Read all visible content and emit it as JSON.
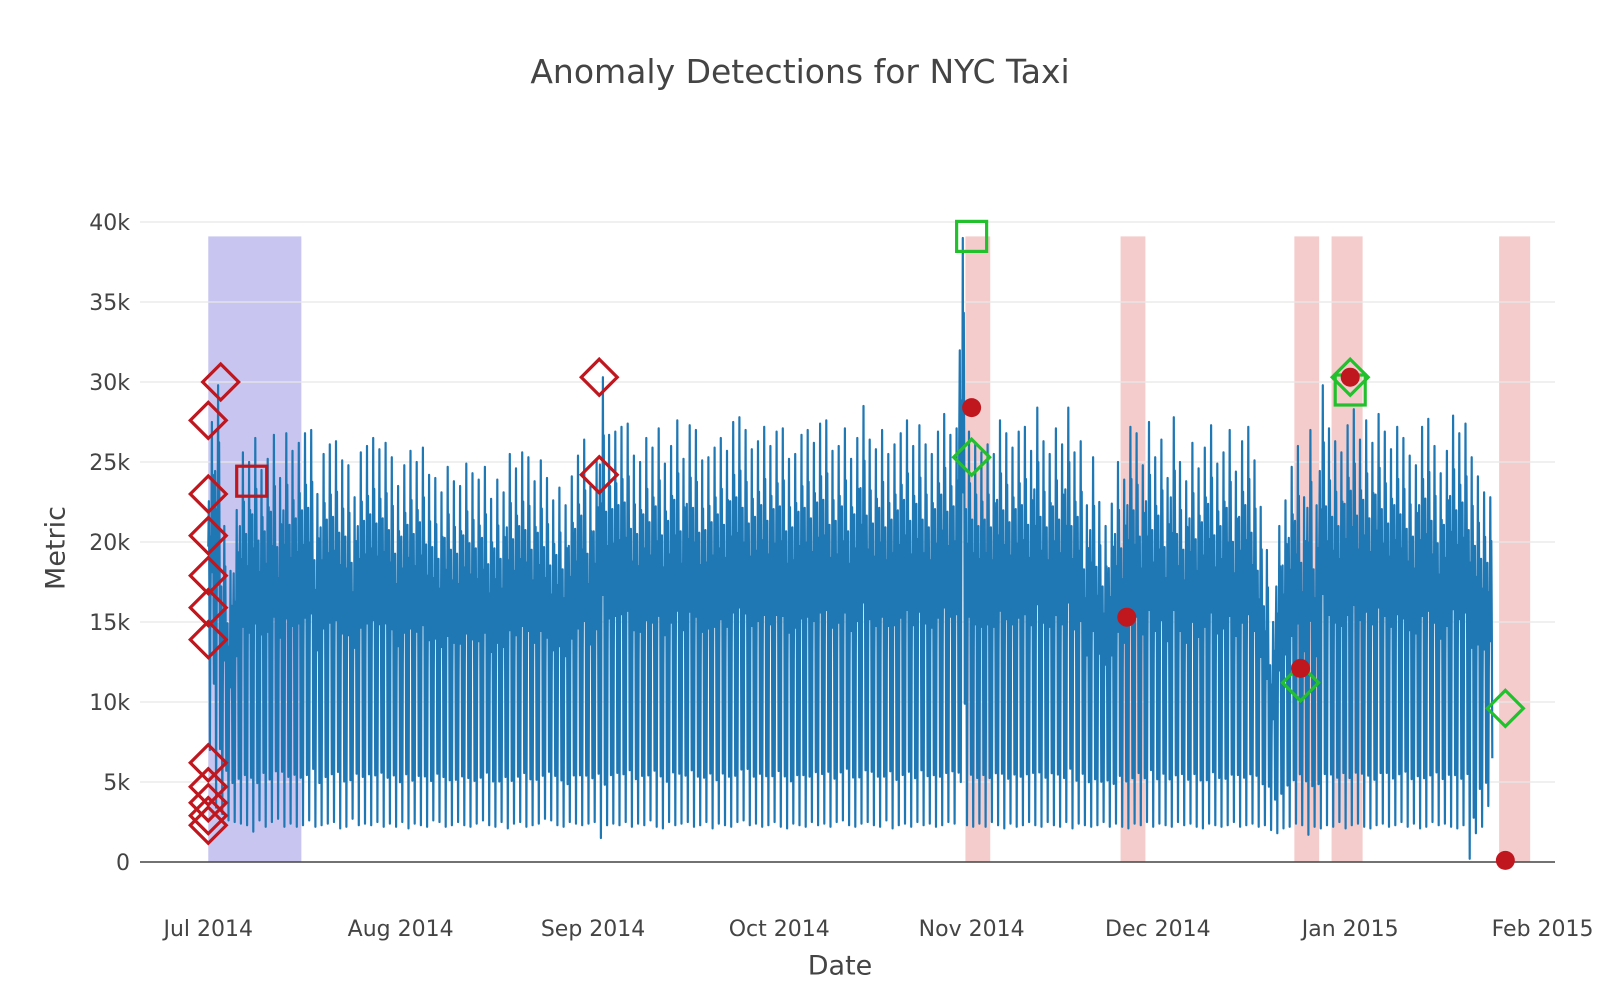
{
  "chart_data": {
    "type": "line",
    "title": "Anomaly Detections for NYC Taxi",
    "xlabel": "Date",
    "ylabel": "Metric",
    "x_range": [
      "2014-06-20",
      "2015-02-03"
    ],
    "ylim": [
      0,
      40000
    ],
    "grid": "horizontal",
    "x_ticks": [
      {
        "date": "2014-07-01",
        "label": "Jul 2014"
      },
      {
        "date": "2014-08-01",
        "label": "Aug 2014"
      },
      {
        "date": "2014-09-01",
        "label": "Sep 2014"
      },
      {
        "date": "2014-10-01",
        "label": "Oct 2014"
      },
      {
        "date": "2014-11-01",
        "label": "Nov 2014"
      },
      {
        "date": "2014-12-01",
        "label": "Dec 2014"
      },
      {
        "date": "2015-01-01",
        "label": "Jan 2015"
      },
      {
        "date": "2015-02-01",
        "label": "Feb 2015"
      }
    ],
    "y_ticks": [
      {
        "value": 0,
        "label": "0"
      },
      {
        "value": 5000,
        "label": "5k"
      },
      {
        "value": 10000,
        "label": "10k"
      },
      {
        "value": 15000,
        "label": "15k"
      },
      {
        "value": 20000,
        "label": "20k"
      },
      {
        "value": 25000,
        "label": "25k"
      },
      {
        "value": 30000,
        "label": "30k"
      },
      {
        "value": 35000,
        "label": "35k"
      },
      {
        "value": 40000,
        "label": "40k"
      }
    ],
    "series": [
      {
        "color": "#1f77b4",
        "x": [
          "2014-07-01",
          "2014-07-02",
          "2014-07-03",
          "2014-07-04",
          "2014-07-05",
          "2014-07-06",
          "2014-07-07",
          "2014-07-08",
          "2014-07-09",
          "2014-07-10",
          "2014-07-11",
          "2014-07-12",
          "2014-07-13",
          "2014-07-14",
          "2014-07-15",
          "2014-07-16",
          "2014-07-17",
          "2014-07-18",
          "2014-07-19",
          "2014-07-20",
          "2014-07-21",
          "2014-07-22",
          "2014-07-23",
          "2014-07-24",
          "2014-07-25",
          "2014-07-26",
          "2014-07-27",
          "2014-07-28",
          "2014-07-29",
          "2014-07-30",
          "2014-07-31",
          "2014-08-01",
          "2014-08-02",
          "2014-08-03",
          "2014-08-04",
          "2014-08-05",
          "2014-08-06",
          "2014-08-07",
          "2014-08-08",
          "2014-08-09",
          "2014-08-10",
          "2014-08-11",
          "2014-08-12",
          "2014-08-13",
          "2014-08-14",
          "2014-08-15",
          "2014-08-16",
          "2014-08-17",
          "2014-08-18",
          "2014-08-19",
          "2014-08-20",
          "2014-08-21",
          "2014-08-22",
          "2014-08-23",
          "2014-08-24",
          "2014-08-25",
          "2014-08-26",
          "2014-08-27",
          "2014-08-28",
          "2014-08-29",
          "2014-08-30",
          "2014-08-31",
          "2014-09-01",
          "2014-09-02",
          "2014-09-03",
          "2014-09-04",
          "2014-09-05",
          "2014-09-06",
          "2014-09-07",
          "2014-09-08",
          "2014-09-09",
          "2014-09-10",
          "2014-09-11",
          "2014-09-12",
          "2014-09-13",
          "2014-09-14",
          "2014-09-15",
          "2014-09-16",
          "2014-09-17",
          "2014-09-18",
          "2014-09-19",
          "2014-09-20",
          "2014-09-21",
          "2014-09-22",
          "2014-09-23",
          "2014-09-24",
          "2014-09-25",
          "2014-09-26",
          "2014-09-27",
          "2014-09-28",
          "2014-09-29",
          "2014-09-30",
          "2014-10-01",
          "2014-10-02",
          "2014-10-03",
          "2014-10-04",
          "2014-10-05",
          "2014-10-06",
          "2014-10-07",
          "2014-10-08",
          "2014-10-09",
          "2014-10-10",
          "2014-10-11",
          "2014-10-12",
          "2014-10-13",
          "2014-10-14",
          "2014-10-15",
          "2014-10-16",
          "2014-10-17",
          "2014-10-18",
          "2014-10-19",
          "2014-10-20",
          "2014-10-21",
          "2014-10-22",
          "2014-10-23",
          "2014-10-24",
          "2014-10-25",
          "2014-10-26",
          "2014-10-27",
          "2014-10-28",
          "2014-10-29",
          "2014-10-30",
          "2014-10-31",
          "2014-11-01",
          "2014-11-02",
          "2014-11-03",
          "2014-11-04",
          "2014-11-05",
          "2014-11-06",
          "2014-11-07",
          "2014-11-08",
          "2014-11-09",
          "2014-11-10",
          "2014-11-11",
          "2014-11-12",
          "2014-11-13",
          "2014-11-14",
          "2014-11-15",
          "2014-11-16",
          "2014-11-17",
          "2014-11-18",
          "2014-11-19",
          "2014-11-20",
          "2014-11-21",
          "2014-11-22",
          "2014-11-23",
          "2014-11-24",
          "2014-11-25",
          "2014-11-26",
          "2014-11-27",
          "2014-11-28",
          "2014-11-29",
          "2014-11-30",
          "2014-12-01",
          "2014-12-02",
          "2014-12-03",
          "2014-12-04",
          "2014-12-05",
          "2014-12-06",
          "2014-12-07",
          "2014-12-08",
          "2014-12-09",
          "2014-12-10",
          "2014-12-11",
          "2014-12-12",
          "2014-12-13",
          "2014-12-14",
          "2014-12-15",
          "2014-12-16",
          "2014-12-17",
          "2014-12-18",
          "2014-12-19",
          "2014-12-20",
          "2014-12-21",
          "2014-12-22",
          "2014-12-23",
          "2014-12-24",
          "2014-12-25",
          "2014-12-26",
          "2014-12-27",
          "2014-12-28",
          "2014-12-29",
          "2014-12-30",
          "2014-12-31",
          "2015-01-01",
          "2015-01-02",
          "2015-01-03",
          "2015-01-04",
          "2015-01-05",
          "2015-01-06",
          "2015-01-07",
          "2015-01-08",
          "2015-01-09",
          "2015-01-10",
          "2015-01-11",
          "2015-01-12",
          "2015-01-13",
          "2015-01-14",
          "2015-01-15",
          "2015-01-16",
          "2015-01-17",
          "2015-01-18",
          "2015-01-19",
          "2015-01-20",
          "2015-01-21",
          "2015-01-22",
          "2015-01-23",
          "2015-01-24",
          "2015-01-25",
          "2015-01-26",
          "2015-01-27",
          "2015-01-28",
          "2015-01-29",
          "2015-01-30",
          "2015-01-31",
          "2015-02-01"
        ],
        "daily_max": [
          27500,
          29800,
          21000,
          18200,
          22000,
          25600,
          25000,
          26500,
          24500,
          25200,
          26700,
          24000,
          26800,
          25700,
          26200,
          26800,
          27000,
          23000,
          25500,
          26100,
          26300,
          25100,
          24800,
          22800,
          25600,
          26000,
          26500,
          25800,
          26200,
          25300,
          23500,
          24800,
          25700,
          25000,
          25900,
          24200,
          24000,
          23100,
          24700,
          23800,
          23500,
          24900,
          24300,
          23900,
          24700,
          22700,
          23900,
          23100,
          25500,
          24600,
          25600,
          25300,
          23800,
          25100,
          24000,
          22600,
          23400,
          22300,
          24100,
          25400,
          26400,
          23500,
          25200,
          30300,
          26700,
          26900,
          27200,
          27400,
          25400,
          25000,
          26500,
          25900,
          27100,
          24900,
          26000,
          27600,
          25200,
          27300,
          27000,
          25100,
          25300,
          25900,
          26500,
          25700,
          27500,
          27800,
          27000,
          25800,
          26300,
          27200,
          26000,
          26900,
          27100,
          25200,
          25500,
          26700,
          27000,
          26200,
          27400,
          27600,
          25700,
          26000,
          27100,
          25200,
          26500,
          28500,
          26400,
          25800,
          27000,
          25500,
          26100,
          26800,
          27600,
          26000,
          27300,
          26100,
          25500,
          26900,
          28000,
          26700,
          27100,
          39000,
          26900,
          26100,
          25600,
          26100,
          25500,
          27600,
          26800,
          25900,
          26900,
          27200,
          25700,
          28400,
          26300,
          25500,
          27100,
          26100,
          28400,
          25600,
          26300,
          22300,
          25300,
          22500,
          21000,
          22400,
          25000,
          23900,
          27200,
          26800,
          24800,
          27500,
          25300,
          26400,
          24000,
          27800,
          25000,
          23800,
          26200,
          24600,
          25900,
          27300,
          24900,
          25600,
          27000,
          24400,
          26300,
          27200,
          25100,
          22200,
          19500,
          15000,
          21000,
          22600,
          24700,
          26000,
          22800,
          27000,
          22300,
          29800,
          27100,
          26300,
          25600,
          27300,
          28300,
          26400,
          27600,
          26200,
          28000,
          26900,
          25800,
          27200,
          26500,
          25400,
          24800,
          27200,
          27700,
          26000,
          24300,
          25700,
          27900,
          26800,
          27400,
          25300,
          24100,
          23100,
          22800,
          26200,
          28000
        ],
        "daily_min": [
          7000,
          3400,
          3000,
          2600,
          2500,
          2400,
          2300,
          1900,
          2600,
          2200,
          2500,
          2700,
          2200,
          2400,
          2200,
          2300,
          2600,
          2200,
          2300,
          2400,
          2500,
          2100,
          2200,
          2700,
          2300,
          2400,
          2300,
          2500,
          2200,
          2400,
          2200,
          2500,
          2100,
          2400,
          2300,
          2200,
          2600,
          2500,
          2200,
          2300,
          2500,
          2300,
          2200,
          2400,
          2600,
          2300,
          2200,
          2500,
          2100,
          2400,
          2500,
          2200,
          2300,
          2400,
          2700,
          2600,
          2300,
          2200,
          2500,
          2400,
          2300,
          2400,
          2500,
          1500,
          2300,
          2400,
          2300,
          2500,
          2200,
          2400,
          2300,
          2600,
          2200,
          2100,
          2500,
          2300,
          2400,
          2500,
          2200,
          2300,
          2500,
          2100,
          2400,
          2300,
          2200,
          2500,
          2600,
          2300,
          2400,
          2200,
          2300,
          2500,
          2200,
          2100,
          2400,
          2300,
          2200,
          2500,
          2300,
          2400,
          2200,
          2500,
          2600,
          2300,
          2200,
          2400,
          2500,
          2300,
          2200,
          2600,
          2100,
          2300,
          2400,
          2200,
          2500,
          2300,
          2400,
          2200,
          2300,
          2500,
          2400,
          5000,
          2300,
          2200,
          2400,
          2200,
          2500,
          2300,
          2100,
          2400,
          2200,
          2300,
          2500,
          2300,
          2200,
          2500,
          2300,
          2200,
          2500,
          2100,
          2400,
          2300,
          2200,
          2300,
          2500,
          2200,
          2400,
          2200,
          2100,
          2400,
          2300,
          2500,
          2200,
          2400,
          2300,
          2200,
          2500,
          2300,
          2400,
          2200,
          2100,
          2400,
          2300,
          2200,
          2300,
          2500,
          2200,
          2300,
          2400,
          2200,
          2300,
          2000,
          1800,
          2100,
          2200,
          2400,
          2300,
          1700,
          2200,
          2100,
          2300,
          2200,
          2500,
          2100,
          2300,
          2400,
          2200,
          2100,
          2300,
          2400,
          2200,
          2300,
          2500,
          2200,
          2400,
          2100,
          2200,
          2500,
          2300,
          2400,
          2200,
          2100,
          2300,
          200,
          1800,
          2200,
          3500
        ]
      }
    ],
    "anomalies": {
      "red_diamonds": [
        {
          "x": "2014-07-03",
          "y": 30000
        },
        {
          "x": "2014-07-01",
          "y": 27600
        },
        {
          "x": "2014-07-01",
          "y": 23000
        },
        {
          "x": "2014-07-01",
          "y": 20400
        },
        {
          "x": "2014-07-01",
          "y": 17900
        },
        {
          "x": "2014-07-01",
          "y": 15900
        },
        {
          "x": "2014-07-01",
          "y": 13900
        },
        {
          "x": "2014-07-01",
          "y": 6200
        },
        {
          "x": "2014-07-01",
          "y": 4700
        },
        {
          "x": "2014-07-01",
          "y": 3700
        },
        {
          "x": "2014-07-01",
          "y": 2900
        },
        {
          "x": "2014-07-01",
          "y": 2300
        },
        {
          "x": "2014-09-02",
          "y": 30300
        },
        {
          "x": "2014-09-02",
          "y": 24200
        }
      ],
      "red_squares": [
        {
          "x": "2014-07-08",
          "y": 23800
        }
      ],
      "red_dots": [
        {
          "x": "2014-11-01",
          "y": 28400
        },
        {
          "x": "2014-11-26",
          "y": 15300
        },
        {
          "x": "2014-12-24",
          "y": 12100
        },
        {
          "x": "2015-01-01",
          "y": 30300
        },
        {
          "x": "2015-01-26",
          "y": 100
        }
      ],
      "green_diamonds": [
        {
          "x": "2014-11-01",
          "y": 25300
        },
        {
          "x": "2014-12-24",
          "y": 11200
        },
        {
          "x": "2015-01-01",
          "y": 30300
        },
        {
          "x": "2015-01-26",
          "y": 9600
        }
      ],
      "green_squares": [
        {
          "x": "2014-11-01",
          "y": 39100
        },
        {
          "x": "2015-01-01",
          "y": 29500
        }
      ]
    },
    "regions": [
      {
        "color": "#c8c6f0",
        "x0": "2014-07-01",
        "x1": "2014-07-16"
      },
      {
        "color": "#f4cccc",
        "x0": "2014-10-31",
        "x1": "2014-11-04"
      },
      {
        "color": "#f4cccc",
        "x0": "2014-11-25",
        "x1": "2014-11-29"
      },
      {
        "color": "#f4cccc",
        "x0": "2014-12-23",
        "x1": "2014-12-27"
      },
      {
        "color": "#f4cccc",
        "x0": "2014-12-29",
        "x1": "2015-01-03"
      },
      {
        "color": "#f4cccc",
        "x0": "2015-01-25",
        "x1": "2015-01-30"
      }
    ],
    "colors": {
      "line": "#1f77b4",
      "anomaly_red": "#c0161e",
      "anomaly_green": "#23c02d",
      "grid": "#e8e8e8",
      "axis": "#444444"
    }
  }
}
